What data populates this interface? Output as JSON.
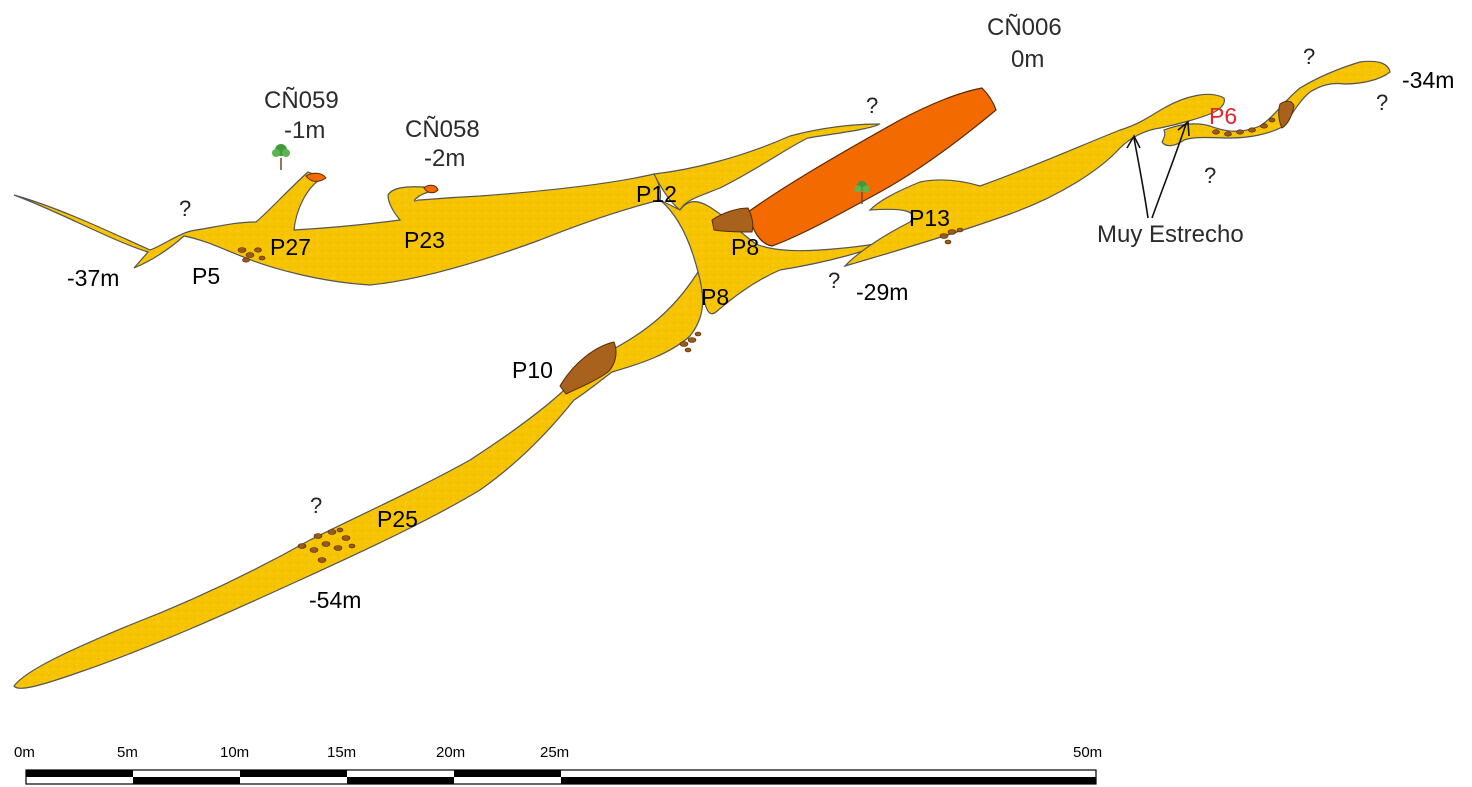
{
  "entrances": [
    {
      "name": "CÑ059",
      "depth": "-1m"
    },
    {
      "name": "CÑ058",
      "depth": "-2m"
    },
    {
      "name": "CÑ006",
      "depth": "0m"
    }
  ],
  "pitches": [
    "P27",
    "P5",
    "P23",
    "P12",
    "P8",
    "P8",
    "P10",
    "P13",
    "P25",
    "P6"
  ],
  "depths": [
    "-37m",
    "-29m",
    "-54m",
    "-34m"
  ],
  "unknown_mark": "?",
  "note": "Muy Estrecho",
  "scale": {
    "labels": [
      "0m",
      "5m",
      "10m",
      "15m",
      "20m",
      "25m",
      "50m"
    ]
  },
  "colors": {
    "passage": "#f6c400",
    "shaft": "#f26a00",
    "pit": "#a8621e",
    "red_label": "#e3262b"
  }
}
